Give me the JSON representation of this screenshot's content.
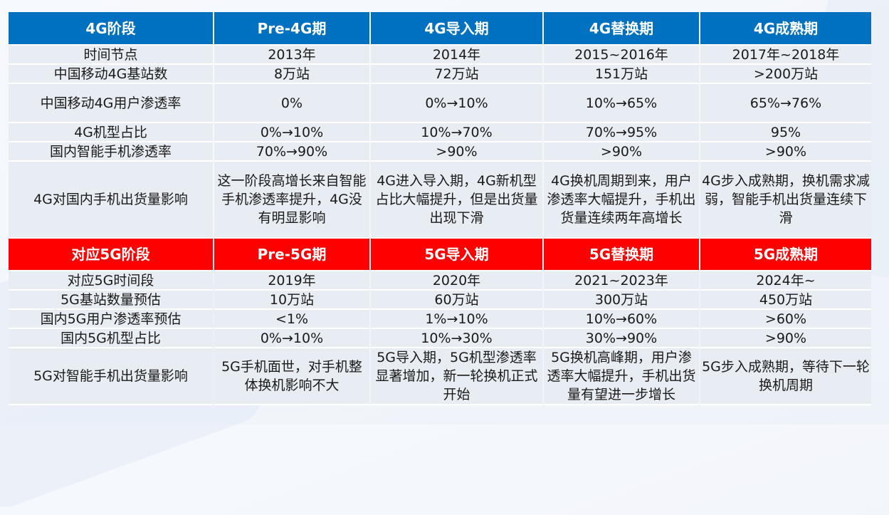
{
  "table_4g": {
    "header": [
      "4G阶段",
      "Pre-4G期",
      "4G导入期",
      "4G替换期",
      "4G成熟期"
    ],
    "rows": [
      [
        "时间节点",
        "2013年",
        "2014年",
        "2015~2016年",
        "2017年~2018年"
      ],
      [
        "中国移动4G基站数",
        "8万站",
        "72万站",
        "151万站",
        ">200万站"
      ],
      [
        "中国移动4G用户渗透率",
        "0%",
        "0%→10%",
        "10%→65%",
        "65%→76%"
      ],
      [
        "4G机型占比",
        "0%→10%",
        "10%→70%",
        "70%→95%",
        "95%"
      ],
      [
        "国内智能手机渗透率",
        "70%→90%",
        ">90%",
        ">90%",
        ">90%"
      ],
      [
        "4G对国内手机出货量影响",
        "这一阶段高增长来自智能手机渗透率提升，4G没有明显影响",
        "4G进入导入期，4G新机型占比大幅提升，但是出货量出现下滑",
        "4G换机周期到来，用户渗透率大幅提升，手机出货量连续两年高增长",
        "4G步入成熟期，换机需求减弱，智能手机出货量连续下滑"
      ]
    ]
  },
  "table_5g": {
    "header": [
      "对应5G阶段",
      "Pre-5G期",
      "5G导入期",
      "5G替换期",
      "5G成熟期"
    ],
    "rows": [
      [
        "对应5G时间段",
        "2019年",
        "2020年",
        "2021~2023年",
        "2024年~"
      ],
      [
        "5G基站数量预估",
        "10万站",
        "60万站",
        "300万站",
        "450万站"
      ],
      [
        "国内5G用户渗透率预估",
        "<1%",
        "1%→10%",
        "10%→60%",
        ">60%"
      ],
      [
        "国内5G机型占比",
        "0%→10%",
        "10%→30%",
        "30%→90%",
        ">90%"
      ],
      [
        "5G对智能手机出货量影响",
        "5G手机面世，对手机整体换机影响不大",
        "5G导入期，5G机型渗透率显著增加，新一轮换机正式开始",
        "5G换机高峰期，用户渗透率大幅提升，手机出货量有望进一步增长",
        "5G步入成熟期，等待下一轮换机周期"
      ]
    ]
  },
  "colors": {
    "header_4g": "#0070c0",
    "header_5g": "#ff0000",
    "cell_bg": "#e8ecf3"
  }
}
